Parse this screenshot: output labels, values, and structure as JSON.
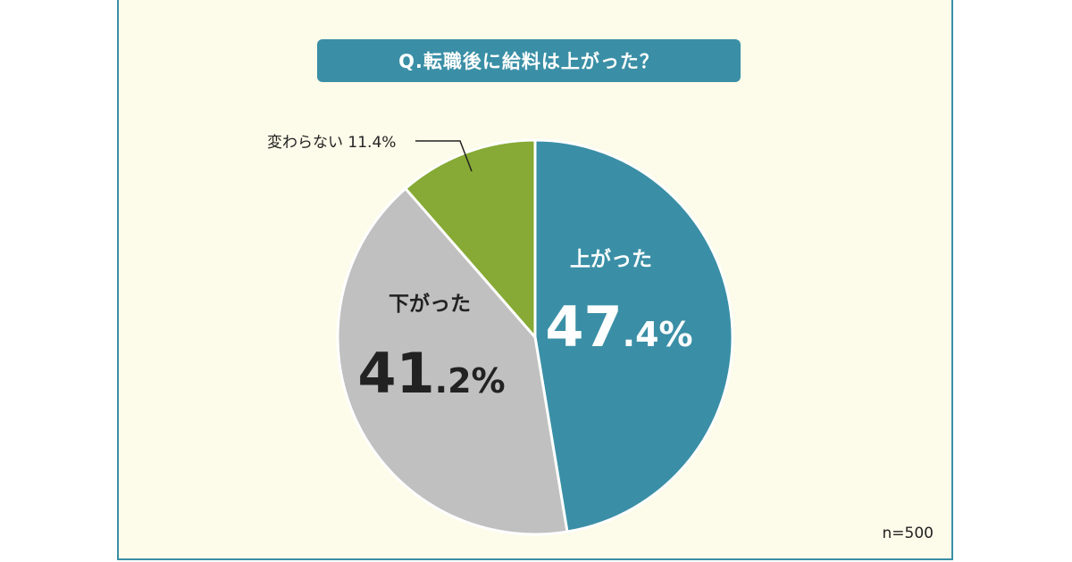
{
  "chart_data": {
    "type": "pie",
    "title": "Q.転職後に給料は上がった？",
    "slices": [
      {
        "label": "上がった",
        "value": 47.4,
        "num": "47",
        "dec": ".4%",
        "color": "#3a8fa6"
      },
      {
        "label": "下がった",
        "value": 41.2,
        "num": "41",
        "dec": ".2%",
        "color": "#c0c0c0"
      },
      {
        "label": "変わらない",
        "value": 11.4,
        "text": "変わらない 11.4%",
        "color": "#86aa35"
      }
    ],
    "sample_size": "n=500",
    "start": "top",
    "direction": "clockwise"
  }
}
